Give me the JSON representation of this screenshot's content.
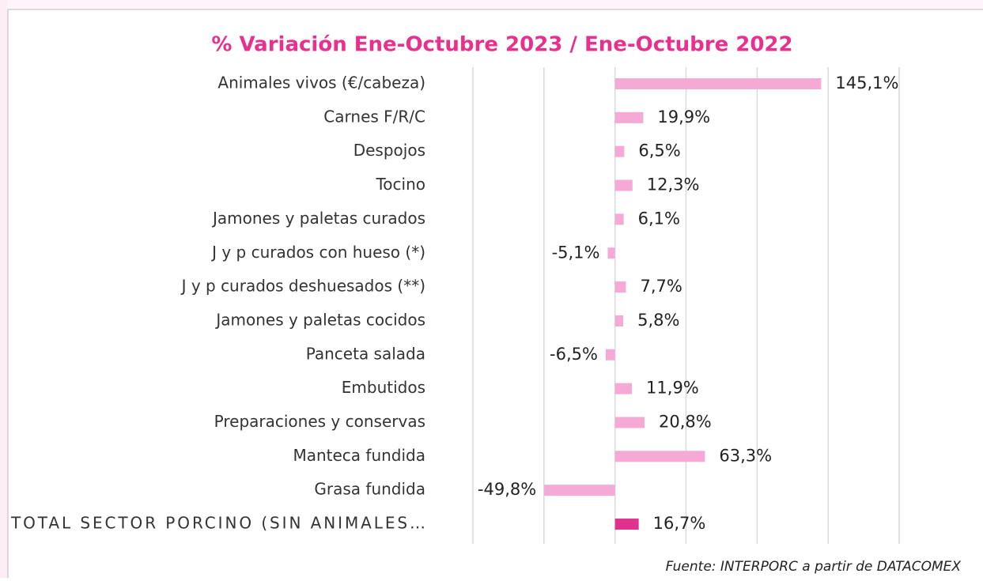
{
  "chart_data": {
    "type": "hbar",
    "title": "% Variación Ene-Octubre 2023 / Ene-Octubre 2022",
    "categories": [
      "Animales vivos (€/cabeza)",
      "Carnes F/R/C",
      "Despojos",
      "Tocino",
      "Jamones y paletas curados",
      "J y p curados con hueso (*)",
      "J y p curados deshuesados (**)",
      "Jamones y paletas cocidos",
      "Panceta salada",
      "Embutidos",
      "Preparaciones y conservas",
      "Manteca fundida",
      "Grasa fundida",
      "TOTAL SECTOR PORCINO (SIN ANIMALES…"
    ],
    "values": [
      145.1,
      19.9,
      6.5,
      12.3,
      6.1,
      -5.1,
      7.7,
      5.8,
      -6.5,
      11.9,
      20.8,
      63.3,
      -49.8,
      16.7
    ],
    "value_labels": [
      "145,1%",
      "19,9%",
      "6,5%",
      "12,3%",
      "6,1%",
      "-5,1%",
      "7,7%",
      "5,8%",
      "-6,5%",
      "11,9%",
      "20,8%",
      "63,3%",
      "-49,8%",
      "16,7%"
    ],
    "colors": [
      "#f4aad4",
      "#f4aad4",
      "#f4aad4",
      "#f4aad4",
      "#f4aad4",
      "#f4aad4",
      "#f4aad4",
      "#f4aad4",
      "#f4aad4",
      "#f4aad4",
      "#f4aad4",
      "#f4aad4",
      "#f4aad4",
      "#e0338f"
    ],
    "xlim": [
      -100,
      200
    ],
    "xticks": [
      -100,
      -50,
      0,
      50,
      100,
      150,
      200
    ],
    "grid": true,
    "source": "Fuente: INTERPORC  a partir de DATACOMEX"
  }
}
